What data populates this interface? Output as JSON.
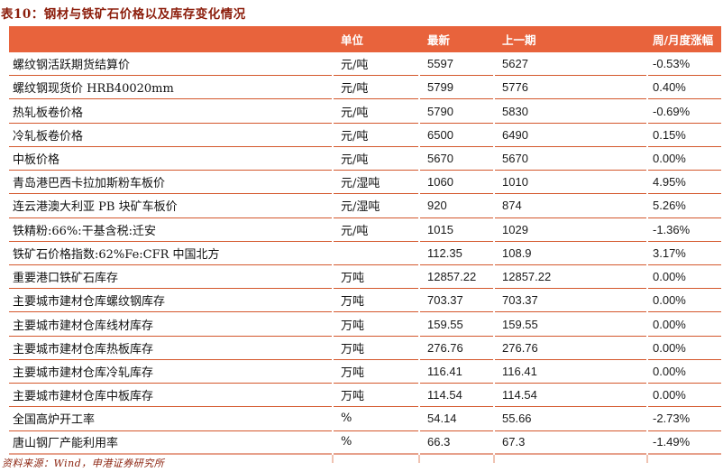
{
  "title": "表10：钢材与铁矿石价格以及库存变化情况",
  "colors": {
    "header_bg": "#E8633C",
    "title_text": "#8C1D0B",
    "row_line": "#D4572C",
    "bottom_line": "#E7A28D"
  },
  "table": {
    "columns": [
      "",
      "单位",
      "最新",
      "上一期",
      "周/月度涨幅"
    ],
    "rows": [
      {
        "label": "螺纹钢活跃期货结算价",
        "unit": "元/吨",
        "latest": "5597",
        "previous": "5627",
        "change": "-0.53%"
      },
      {
        "label": "螺纹钢现货价  HRB40020mm",
        "unit": "元/吨",
        "latest": "5799",
        "previous": "5776",
        "change": "0.40%"
      },
      {
        "label": "热轧板卷价格",
        "unit": "元/吨",
        "latest": "5790",
        "previous": "5830",
        "change": "-0.69%"
      },
      {
        "label": "冷轧板卷价格",
        "unit": "元/吨",
        "latest": "6500",
        "previous": "6490",
        "change": "0.15%"
      },
      {
        "label": "中板价格",
        "unit": "元/吨",
        "latest": "5670",
        "previous": "5670",
        "change": "0.00%"
      },
      {
        "label": "青岛港巴西卡拉加斯粉车板价",
        "unit": "元/湿吨",
        "latest": "1060",
        "previous": "1010",
        "change": "4.95%"
      },
      {
        "label": "连云港澳大利亚 PB 块矿车板价",
        "unit": "元/湿吨",
        "latest": "920",
        "previous": "874",
        "change": "5.26%"
      },
      {
        "label": "铁精粉:66%:干基含税:迁安",
        "unit": "元/吨",
        "latest": "1015",
        "previous": "1029",
        "change": "-1.36%"
      },
      {
        "label": "铁矿石价格指数:62%Fe:CFR 中国北方",
        "unit": "",
        "latest": "112.35",
        "previous": "108.9",
        "change": "3.17%"
      },
      {
        "label": "重要港口铁矿石库存",
        "unit": "万吨",
        "latest": "12857.22",
        "previous": "12857.22",
        "change": "0.00%"
      },
      {
        "label": "主要城市建材仓库螺纹钢库存",
        "unit": "万吨",
        "latest": "703.37",
        "previous": "703.37",
        "change": "0.00%"
      },
      {
        "label": "主要城市建材仓库线材库存",
        "unit": "万吨",
        "latest": "159.55",
        "previous": "159.55",
        "change": "0.00%"
      },
      {
        "label": "主要城市建材仓库热板库存",
        "unit": "万吨",
        "latest": "276.76",
        "previous": "276.76",
        "change": "0.00%"
      },
      {
        "label": "主要城市建材仓库冷轧库存",
        "unit": "万吨",
        "latest": "116.41",
        "previous": "116.41",
        "change": "0.00%"
      },
      {
        "label": "主要城市建材仓库中板库存",
        "unit": "万吨",
        "latest": "114.54",
        "previous": "114.54",
        "change": "0.00%"
      },
      {
        "label": "全国高炉开工率",
        "unit": "%",
        "latest": "54.14",
        "previous": "55.66",
        "change": "-2.73%"
      },
      {
        "label": "唐山钢厂产能利用率",
        "unit": "%",
        "latest": "66.3",
        "previous": "67.3",
        "change": "-1.49%"
      }
    ]
  },
  "footer": {
    "source": "资料来源：Wind，申港证券研究所"
  }
}
